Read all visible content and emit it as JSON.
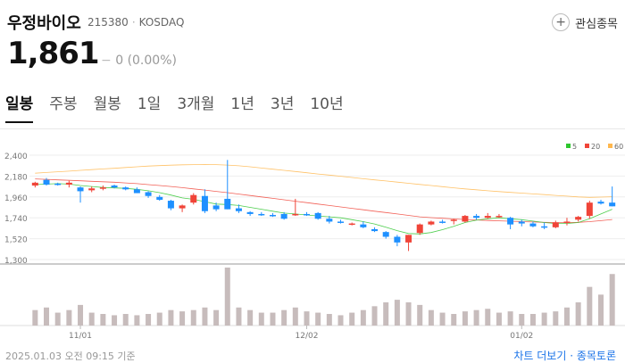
{
  "stock": {
    "name": "우정바이오",
    "code": "215380",
    "market": "KOSDAQ",
    "price": "1,861",
    "change": "0",
    "change_pct": "(0.00%)",
    "favorite_label": "관심종목"
  },
  "tabs": [
    {
      "label": "일봉"
    },
    {
      "label": "주봉"
    },
    {
      "label": "월봉"
    },
    {
      "label": "1일"
    },
    {
      "label": "3개월"
    },
    {
      "label": "1년"
    },
    {
      "label": "3년"
    },
    {
      "label": "10년"
    }
  ],
  "footer": {
    "left": "2025.01.03 오전 09:15 기준",
    "right": "차트 더보기 · 종목토론"
  },
  "colors": {
    "up": "#f04438",
    "down": "#1e90ff",
    "ma5": "#2ec62e",
    "ma20": "#f04438",
    "ma60": "#ffb74d",
    "volume": "#c7bcbc"
  },
  "chart_data": {
    "type": "candlestick",
    "y_ticks": [
      "2,400",
      "2,180",
      "1,960",
      "1,740",
      "1,520",
      "1,300"
    ],
    "ylim": [
      1300,
      2400
    ],
    "x_ticks": [
      {
        "label": "11/01",
        "index": 4
      },
      {
        "label": "12/02",
        "index": 24
      },
      {
        "label": "01/02",
        "index": 43
      }
    ],
    "legend": [
      {
        "name": "5",
        "color": "#2ec62e"
      },
      {
        "name": "20",
        "color": "#f04438"
      },
      {
        "name": "60",
        "color": "#ffb74d"
      }
    ],
    "legend_position": "top-right",
    "candles": [
      [
        2080,
        2120,
        2060,
        2110,
        12
      ],
      [
        2140,
        2160,
        2080,
        2090,
        14
      ],
      [
        2100,
        2110,
        2080,
        2090,
        10
      ],
      [
        2090,
        2130,
        2060,
        2110,
        12
      ],
      [
        2060,
        2070,
        1900,
        2020,
        16
      ],
      [
        2030,
        2070,
        2010,
        2050,
        10
      ],
      [
        2050,
        2080,
        2030,
        2060,
        9
      ],
      [
        2080,
        2090,
        2050,
        2060,
        8
      ],
      [
        2060,
        2070,
        2030,
        2040,
        9
      ],
      [
        2040,
        2060,
        2000,
        2000,
        8
      ],
      [
        2010,
        2020,
        1950,
        1970,
        9
      ],
      [
        1960,
        1980,
        1920,
        1930,
        10
      ],
      [
        1920,
        1930,
        1820,
        1840,
        12
      ],
      [
        1840,
        1880,
        1800,
        1870,
        11
      ],
      [
        1900,
        2000,
        1880,
        1980,
        12
      ],
      [
        1970,
        2040,
        1790,
        1810,
        14
      ],
      [
        1870,
        1900,
        1810,
        1830,
        12
      ],
      [
        1940,
        2350,
        1830,
        1830,
        45
      ],
      [
        1840,
        1880,
        1790,
        1810,
        14
      ],
      [
        1800,
        1810,
        1760,
        1780,
        12
      ],
      [
        1780,
        1800,
        1760,
        1770,
        10
      ],
      [
        1770,
        1790,
        1750,
        1760,
        10
      ],
      [
        1780,
        1800,
        1720,
        1730,
        12
      ],
      [
        1770,
        1940,
        1760,
        1780,
        14
      ],
      [
        1780,
        1800,
        1760,
        1770,
        11
      ],
      [
        1790,
        1800,
        1720,
        1730,
        10
      ],
      [
        1730,
        1760,
        1680,
        1700,
        9
      ],
      [
        1700,
        1720,
        1680,
        1690,
        8
      ],
      [
        1670,
        1690,
        1660,
        1680,
        10
      ],
      [
        1670,
        1700,
        1630,
        1640,
        12
      ],
      [
        1620,
        1640,
        1590,
        1600,
        15
      ],
      [
        1590,
        1600,
        1520,
        1540,
        18
      ],
      [
        1540,
        1560,
        1440,
        1480,
        20
      ],
      [
        1480,
        1560,
        1390,
        1560,
        18
      ],
      [
        1580,
        1680,
        1560,
        1670,
        16
      ],
      [
        1670,
        1710,
        1660,
        1700,
        12
      ],
      [
        1700,
        1720,
        1680,
        1690,
        10
      ],
      [
        1710,
        1730,
        1670,
        1720,
        9
      ],
      [
        1700,
        1770,
        1690,
        1760,
        11
      ],
      [
        1760,
        1780,
        1720,
        1740,
        12
      ],
      [
        1740,
        1790,
        1730,
        1760,
        13
      ],
      [
        1750,
        1780,
        1740,
        1760,
        10
      ],
      [
        1740,
        1750,
        1620,
        1670,
        11
      ],
      [
        1700,
        1720,
        1650,
        1680,
        9
      ],
      [
        1680,
        1700,
        1640,
        1650,
        9
      ],
      [
        1650,
        1690,
        1620,
        1640,
        10
      ],
      [
        1640,
        1710,
        1630,
        1690,
        11
      ],
      [
        1690,
        1740,
        1660,
        1700,
        14
      ],
      [
        1720,
        1760,
        1700,
        1750,
        18
      ],
      [
        1760,
        1920,
        1730,
        1900,
        30
      ],
      [
        1910,
        1930,
        1880,
        1890,
        24
      ],
      [
        1900,
        2070,
        1860,
        1861,
        40
      ]
    ],
    "ma5": [
      2090,
      2095,
      2100,
      2095,
      2080,
      2070,
      2060,
      2055,
      2050,
      2040,
      2025,
      2005,
      1980,
      1950,
      1935,
      1910,
      1885,
      1880,
      1870,
      1850,
      1830,
      1810,
      1790,
      1780,
      1770,
      1760,
      1750,
      1740,
      1720,
      1700,
      1675,
      1640,
      1605,
      1575,
      1570,
      1585,
      1615,
      1650,
      1690,
      1715,
      1730,
      1740,
      1730,
      1720,
      1705,
      1690,
      1680,
      1680,
      1690,
      1730,
      1780,
      1830
    ],
    "ma20": [
      2150,
      2145,
      2140,
      2135,
      2130,
      2125,
      2120,
      2115,
      2108,
      2100,
      2090,
      2080,
      2070,
      2058,
      2045,
      2032,
      2018,
      2005,
      1990,
      1975,
      1960,
      1945,
      1930,
      1915,
      1900,
      1885,
      1870,
      1855,
      1840,
      1825,
      1810,
      1795,
      1780,
      1765,
      1750,
      1742,
      1735,
      1728,
      1722,
      1717,
      1712,
      1708,
      1704,
      1700,
      1696,
      1692,
      1690,
      1690,
      1692,
      1700,
      1710,
      1722
    ],
    "ma60": [
      2210,
      2218,
      2225,
      2232,
      2240,
      2248,
      2255,
      2262,
      2270,
      2278,
      2285,
      2290,
      2295,
      2298,
      2300,
      2302,
      2300,
      2296,
      2288,
      2278,
      2265,
      2252,
      2240,
      2228,
      2215,
      2202,
      2190,
      2178,
      2165,
      2152,
      2140,
      2128,
      2116,
      2104,
      2092,
      2080,
      2068,
      2056,
      2045,
      2035,
      2025,
      2016,
      2008,
      2000,
      1992,
      1984,
      1976,
      1968,
      1960,
      1955,
      1958,
      1962
    ]
  }
}
